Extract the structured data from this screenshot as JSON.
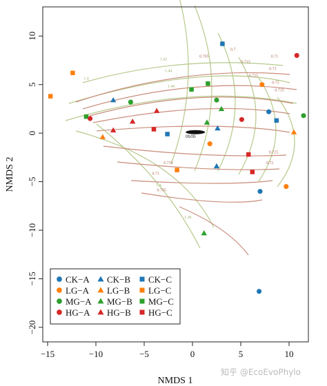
{
  "chart_data": {
    "type": "scatter",
    "xlabel": "NMDS 1",
    "ylabel": "NMDS 2",
    "xlim": [
      -15.5,
      12.0
    ],
    "ylim": [
      -21.5,
      13.0
    ],
    "xticks": [
      -15,
      -10,
      -5,
      0,
      5,
      10
    ],
    "yticks": [
      -20,
      -15,
      -10,
      -5,
      0,
      5,
      10
    ],
    "center_label": "0b0b",
    "series_colors": {
      "CK": "#1f77b4",
      "LG": "#ff7f0e",
      "MG": "#2ca02c",
      "HG": "#d62728"
    },
    "legend_position": "bottom-left",
    "legend": [
      {
        "label": "CK−A",
        "color": "#1f77b4",
        "marker": "circle"
      },
      {
        "label": "CK−B",
        "color": "#1f77b4",
        "marker": "triangle"
      },
      {
        "label": "CK−C",
        "color": "#1f77b4",
        "marker": "square"
      },
      {
        "label": "LG−A",
        "color": "#ff7f0e",
        "marker": "circle"
      },
      {
        "label": "LG−B",
        "color": "#ff7f0e",
        "marker": "triangle"
      },
      {
        "label": "LG−C",
        "color": "#ff7f0e",
        "marker": "square"
      },
      {
        "label": "MG−A",
        "color": "#2ca02c",
        "marker": "circle"
      },
      {
        "label": "MG−B",
        "color": "#2ca02c",
        "marker": "triangle"
      },
      {
        "label": "MG−C",
        "color": "#2ca02c",
        "marker": "square"
      },
      {
        "label": "HG−A",
        "color": "#d62728",
        "marker": "circle"
      },
      {
        "label": "HG−B",
        "color": "#d62728",
        "marker": "triangle"
      },
      {
        "label": "HG−C",
        "color": "#d62728",
        "marker": "square"
      }
    ],
    "points": [
      {
        "group": "CK",
        "marker": "circle",
        "x": 7.9,
        "y": 2.2
      },
      {
        "group": "CK",
        "marker": "circle",
        "x": 7.0,
        "y": -6.0
      },
      {
        "group": "CK",
        "marker": "circle",
        "x": 6.9,
        "y": -16.3
      },
      {
        "group": "CK",
        "marker": "triangle",
        "x": -8.2,
        "y": 3.4
      },
      {
        "group": "CK",
        "marker": "triangle",
        "x": 2.6,
        "y": 0.5
      },
      {
        "group": "CK",
        "marker": "triangle",
        "x": 2.5,
        "y": -3.4
      },
      {
        "group": "CK",
        "marker": "square",
        "x": 3.1,
        "y": 9.2
      },
      {
        "group": "CK",
        "marker": "square",
        "x": 8.7,
        "y": 1.3
      },
      {
        "group": "CK",
        "marker": "square",
        "x": -2.6,
        "y": -0.1
      },
      {
        "group": "LG",
        "marker": "circle",
        "x": 7.2,
        "y": 5.0
      },
      {
        "group": "LG",
        "marker": "circle",
        "x": 1.8,
        "y": -1.1
      },
      {
        "group": "LG",
        "marker": "circle",
        "x": 9.7,
        "y": -5.5
      },
      {
        "group": "LG",
        "marker": "triangle",
        "x": -9.3,
        "y": -0.4
      },
      {
        "group": "LG",
        "marker": "triangle",
        "x": 10.5,
        "y": 0.1
      },
      {
        "group": "LG",
        "marker": "square",
        "x": -12.4,
        "y": 6.2
      },
      {
        "group": "LG",
        "marker": "square",
        "x": -14.7,
        "y": 3.8
      },
      {
        "group": "LG",
        "marker": "square",
        "x": -1.6,
        "y": -3.8
      },
      {
        "group": "MG",
        "marker": "circle",
        "x": -6.4,
        "y": 3.2
      },
      {
        "group": "MG",
        "marker": "circle",
        "x": 2.5,
        "y": 3.4
      },
      {
        "group": "MG",
        "marker": "circle",
        "x": 11.5,
        "y": 1.8
      },
      {
        "group": "MG",
        "marker": "triangle",
        "x": 1.5,
        "y": 1.1
      },
      {
        "group": "MG",
        "marker": "triangle",
        "x": 3.0,
        "y": 2.5
      },
      {
        "group": "MG",
        "marker": "triangle",
        "x": 1.2,
        "y": -10.3
      },
      {
        "group": "MG",
        "marker": "square",
        "x": -11.0,
        "y": 1.7
      },
      {
        "group": "MG",
        "marker": "square",
        "x": -0.1,
        "y": 4.5
      },
      {
        "group": "MG",
        "marker": "square",
        "x": 1.6,
        "y": 5.1
      },
      {
        "group": "HG",
        "marker": "circle",
        "x": -10.6,
        "y": 1.5
      },
      {
        "group": "HG",
        "marker": "circle",
        "x": 5.1,
        "y": 1.4
      },
      {
        "group": "HG",
        "marker": "circle",
        "x": 10.8,
        "y": 8.0
      },
      {
        "group": "HG",
        "marker": "triangle",
        "x": -8.2,
        "y": 0.3
      },
      {
        "group": "HG",
        "marker": "triangle",
        "x": -6.2,
        "y": 1.2
      },
      {
        "group": "HG",
        "marker": "triangle",
        "x": -3.7,
        "y": 2.3
      },
      {
        "group": "HG",
        "marker": "square",
        "x": -4.0,
        "y": 0.4
      },
      {
        "group": "HG",
        "marker": "square",
        "x": 5.8,
        "y": -2.2
      },
      {
        "group": "HG",
        "marker": "square",
        "x": 6.2,
        "y": -4.0
      }
    ],
    "contours": {
      "green_labels": [
        {
          "text": "1.42",
          "x": -3.0,
          "y": 7.5
        },
        {
          "text": "1.44",
          "x": -2.5,
          "y": 6.3
        },
        {
          "text": "1.46",
          "x": -2.2,
          "y": 4.7
        },
        {
          "text": "1.4",
          "x": -3.5,
          "y": -5.5
        },
        {
          "text": "1.38",
          "x": -0.5,
          "y": -8.8
        },
        {
          "text": "1.4",
          "x": -11.0,
          "y": 5.5
        }
      ],
      "red_labels": [
        {
          "text": "0.7",
          "x": 4.2,
          "y": 8.5
        },
        {
          "text": "0.705",
          "x": 1.2,
          "y": 7.8
        },
        {
          "text": "0.715",
          "x": 5.5,
          "y": 7.2
        },
        {
          "text": "0.71",
          "x": 8.5,
          "y": 7.8
        },
        {
          "text": "0.725",
          "x": 6.3,
          "y": 5.8
        },
        {
          "text": "0.73",
          "x": 8.3,
          "y": 6.5
        },
        {
          "text": "0.75",
          "x": 8.6,
          "y": 5.1
        },
        {
          "text": "0.735",
          "x": 9.0,
          "y": 4.3
        },
        {
          "text": "0.725",
          "x": 8.4,
          "y": -2.1
        },
        {
          "text": "0.72",
          "x": 8.0,
          "y": -3.2
        },
        {
          "text": "0.735",
          "x": -2.5,
          "y": -3.2
        },
        {
          "text": "0.71",
          "x": -3.8,
          "y": -4.3
        },
        {
          "text": "0.705",
          "x": -3.2,
          "y": -6.0
        }
      ]
    }
  },
  "watermark": "知乎 @EcoEvoPhylo"
}
